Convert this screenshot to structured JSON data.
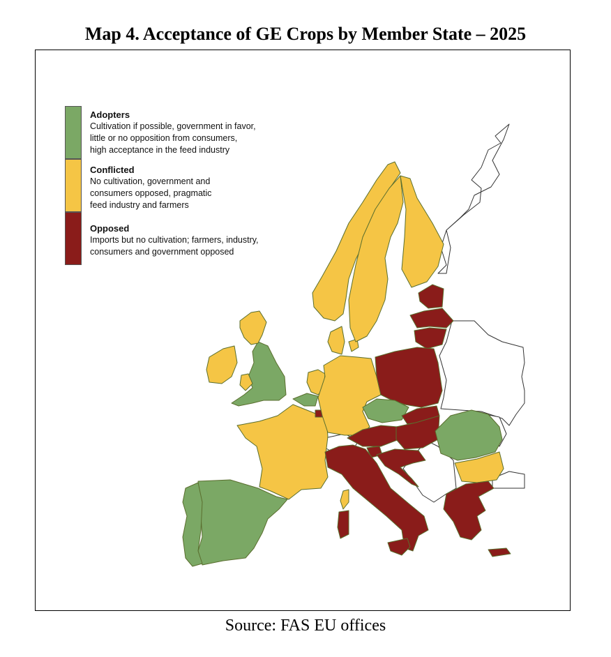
{
  "title": "Map 4. Acceptance of GE Crops by Member State – 2025",
  "source": "Source: FAS EU offices",
  "colors": {
    "adopters": "#7ba865",
    "conflicted": "#f5c545",
    "opposed": "#8a1c1a",
    "nonmember_outline": "#333333"
  },
  "legend": [
    {
      "key": "adopters",
      "heading": "Adopters",
      "lines": [
        "Cultivation if possible, government in favor,",
        "little or no opposition from consumers,",
        "high acceptance in the feed industry"
      ]
    },
    {
      "key": "conflicted",
      "heading": "Conflicted",
      "lines": [
        "No cultivation, government and",
        "consumers opposed, pragmatic",
        "feed industry and farmers"
      ]
    },
    {
      "key": "opposed",
      "heading": "Opposed",
      "lines": [
        "Imports but no cultivation; farmers, industry,",
        "consumers and government opposed"
      ]
    }
  ],
  "regions": [
    {
      "id": "uk",
      "category": "adopters"
    },
    {
      "id": "scotland",
      "category": "conflicted"
    },
    {
      "id": "ireland",
      "category": "conflicted"
    },
    {
      "id": "wales",
      "category": "conflicted"
    },
    {
      "id": "portugal",
      "category": "adopters"
    },
    {
      "id": "spain",
      "category": "adopters"
    },
    {
      "id": "france",
      "category": "conflicted"
    },
    {
      "id": "belgium",
      "category": "adopters"
    },
    {
      "id": "netherlands",
      "category": "conflicted"
    },
    {
      "id": "luxembourg",
      "category": "opposed"
    },
    {
      "id": "germany",
      "category": "conflicted"
    },
    {
      "id": "denmark",
      "category": "conflicted"
    },
    {
      "id": "norway",
      "category": "conflicted"
    },
    {
      "id": "sweden",
      "category": "conflicted"
    },
    {
      "id": "finland",
      "category": "conflicted"
    },
    {
      "id": "estonia",
      "category": "opposed"
    },
    {
      "id": "latvia",
      "category": "opposed"
    },
    {
      "id": "lithuania",
      "category": "opposed"
    },
    {
      "id": "poland",
      "category": "opposed"
    },
    {
      "id": "czechia",
      "category": "adopters"
    },
    {
      "id": "slovakia",
      "category": "opposed"
    },
    {
      "id": "austria",
      "category": "opposed"
    },
    {
      "id": "hungary",
      "category": "opposed"
    },
    {
      "id": "slovenia",
      "category": "opposed"
    },
    {
      "id": "croatia",
      "category": "opposed"
    },
    {
      "id": "italy",
      "category": "opposed"
    },
    {
      "id": "sicily",
      "category": "opposed"
    },
    {
      "id": "sardinia",
      "category": "opposed"
    },
    {
      "id": "corsica",
      "category": "conflicted"
    },
    {
      "id": "romania",
      "category": "adopters"
    },
    {
      "id": "bulgaria",
      "category": "conflicted"
    },
    {
      "id": "greece",
      "category": "opposed"
    },
    {
      "id": "crete",
      "category": "opposed"
    }
  ]
}
